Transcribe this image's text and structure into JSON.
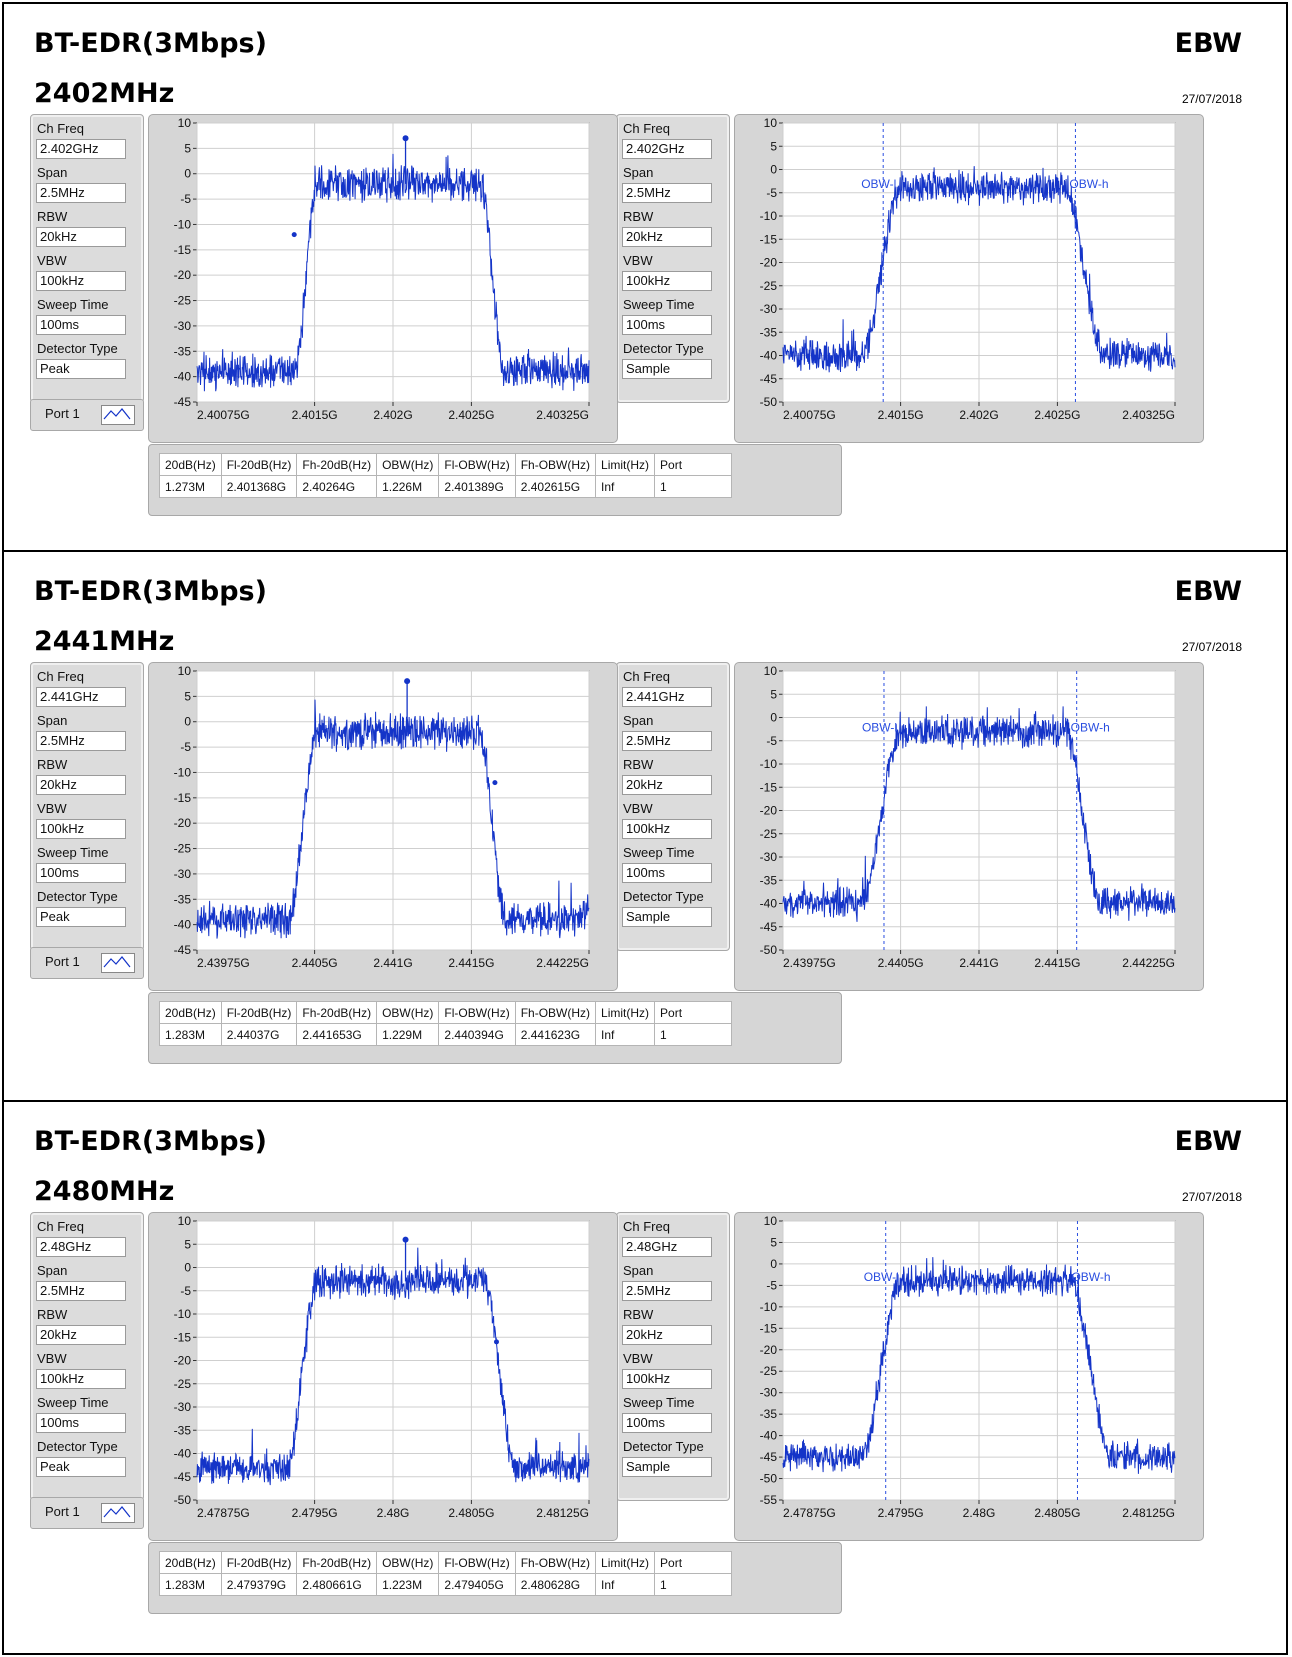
{
  "blocks": [
    {
      "title": "BT-EDR(3Mbps)",
      "freq_heading": "2402MHz",
      "ebw": "EBW",
      "date": "27/07/2018",
      "left_params": [
        [
          "Ch Freq",
          "2.402GHz"
        ],
        [
          "Span",
          "2.5MHz"
        ],
        [
          "RBW",
          "20kHz"
        ],
        [
          "VBW",
          "100kHz"
        ],
        [
          "Sweep Time",
          "100ms"
        ],
        [
          "Detector Type",
          "Peak"
        ]
      ],
      "right_params": [
        [
          "Ch Freq",
          "2.402GHz"
        ],
        [
          "Span",
          "2.5MHz"
        ],
        [
          "RBW",
          "20kHz"
        ],
        [
          "VBW",
          "100kHz"
        ],
        [
          "Sweep Time",
          "100ms"
        ],
        [
          "Detector Type",
          "Sample"
        ]
      ],
      "port_label": "Port 1",
      "table": {
        "headers": [
          "20dB(Hz)",
          "Fl-20dB(Hz)",
          "Fh-20dB(Hz)",
          "OBW(Hz)",
          "Fl-OBW(Hz)",
          "Fh-OBW(Hz)",
          "Limit(Hz)",
          "Port"
        ],
        "values": [
          "1.273M",
          "2.401368G",
          "2.40264G",
          "1.226M",
          "2.401389G",
          "2.402615G",
          "Inf",
          "1"
        ]
      }
    },
    {
      "title": "BT-EDR(3Mbps)",
      "freq_heading": "2441MHz",
      "ebw": "EBW",
      "date": "27/07/2018",
      "left_params": [
        [
          "Ch Freq",
          "2.441GHz"
        ],
        [
          "Span",
          "2.5MHz"
        ],
        [
          "RBW",
          "20kHz"
        ],
        [
          "VBW",
          "100kHz"
        ],
        [
          "Sweep Time",
          "100ms"
        ],
        [
          "Detector Type",
          "Peak"
        ]
      ],
      "right_params": [
        [
          "Ch Freq",
          "2.441GHz"
        ],
        [
          "Span",
          "2.5MHz"
        ],
        [
          "RBW",
          "20kHz"
        ],
        [
          "VBW",
          "100kHz"
        ],
        [
          "Sweep Time",
          "100ms"
        ],
        [
          "Detector Type",
          "Sample"
        ]
      ],
      "port_label": "Port 1",
      "table": {
        "headers": [
          "20dB(Hz)",
          "Fl-20dB(Hz)",
          "Fh-20dB(Hz)",
          "OBW(Hz)",
          "Fl-OBW(Hz)",
          "Fh-OBW(Hz)",
          "Limit(Hz)",
          "Port"
        ],
        "values": [
          "1.283M",
          "2.44037G",
          "2.441653G",
          "1.229M",
          "2.440394G",
          "2.441623G",
          "Inf",
          "1"
        ]
      }
    },
    {
      "title": "BT-EDR(3Mbps)",
      "freq_heading": "2480MHz",
      "ebw": "EBW",
      "date": "27/07/2018",
      "left_params": [
        [
          "Ch Freq",
          "2.48GHz"
        ],
        [
          "Span",
          "2.5MHz"
        ],
        [
          "RBW",
          "20kHz"
        ],
        [
          "VBW",
          "100kHz"
        ],
        [
          "Sweep Time",
          "100ms"
        ],
        [
          "Detector Type",
          "Peak"
        ]
      ],
      "right_params": [
        [
          "Ch Freq",
          "2.48GHz"
        ],
        [
          "Span",
          "2.5MHz"
        ],
        [
          "RBW",
          "20kHz"
        ],
        [
          "VBW",
          "100kHz"
        ],
        [
          "Sweep Time",
          "100ms"
        ],
        [
          "Detector Type",
          "Sample"
        ]
      ],
      "port_label": "Port 1",
      "table": {
        "headers": [
          "20dB(Hz)",
          "Fl-20dB(Hz)",
          "Fh-20dB(Hz)",
          "OBW(Hz)",
          "Fl-OBW(Hz)",
          "Fh-OBW(Hz)",
          "Limit(Hz)",
          "Port"
        ],
        "values": [
          "1.283M",
          "2.479379G",
          "2.480661G",
          "1.223M",
          "2.479405G",
          "2.480628G",
          "Inf",
          "1"
        ]
      }
    }
  ],
  "colors": {
    "trace": "#1434c8",
    "plot_bg": "#ffffff",
    "grid": "#cfcfcf",
    "marker_line": "#2a4ee0"
  },
  "chart_data": [
    {
      "type": "line",
      "id": "2402-peak",
      "x_ticks": [
        "2.40075G",
        "2.4015G",
        "2.402G",
        "2.4025G",
        "2.40325G"
      ],
      "x_tick_values": [
        2.40075,
        2.4015,
        2.402,
        2.4025,
        2.40325
      ],
      "xlim": [
        2.40075,
        2.40325
      ],
      "ylim": [
        -45,
        10
      ],
      "y_ticks": [
        10,
        5,
        0,
        -5,
        -10,
        -15,
        -20,
        -25,
        -30,
        -35,
        -40,
        -45
      ],
      "grid": true,
      "envelope": {
        "floor": -39,
        "plateau": -2,
        "ramp_low": [
          2.40137,
          2.40152
        ],
        "ramp_high": [
          2.40256,
          2.40271
        ]
      },
      "peak_marker": {
        "x": 2.40208,
        "y": 7
      },
      "markers": [
        {
          "x": 2.40137,
          "y": -12
        }
      ]
    },
    {
      "type": "line",
      "id": "2402-sample",
      "x_ticks": [
        "2.40075G",
        "2.4015G",
        "2.402G",
        "2.4025G",
        "2.40325G"
      ],
      "x_tick_values": [
        2.40075,
        2.4015,
        2.402,
        2.4025,
        2.40325
      ],
      "xlim": [
        2.40075,
        2.40325
      ],
      "ylim": [
        -50,
        10
      ],
      "y_ticks": [
        10,
        5,
        0,
        -5,
        -10,
        -15,
        -20,
        -25,
        -30,
        -35,
        -40,
        -45,
        -50
      ],
      "grid": true,
      "envelope": {
        "floor": -40,
        "plateau": -4,
        "ramp_low": [
          2.40125,
          2.4015
        ],
        "ramp_high": [
          2.40255,
          2.4028
        ]
      },
      "obw_lines": [
        {
          "x": 2.401389,
          "label": "OBW-l"
        },
        {
          "x": 2.402615,
          "label": "OBW-h"
        }
      ]
    },
    {
      "type": "line",
      "id": "2441-peak",
      "x_ticks": [
        "2.43975G",
        "2.4405G",
        "2.441G",
        "2.4415G",
        "2.44225G"
      ],
      "x_tick_values": [
        2.43975,
        2.4405,
        2.441,
        2.4415,
        2.44225
      ],
      "xlim": [
        2.43975,
        2.44225
      ],
      "ylim": [
        -45,
        10
      ],
      "y_ticks": [
        10,
        5,
        0,
        -5,
        -10,
        -15,
        -20,
        -25,
        -30,
        -35,
        -40,
        -45
      ],
      "grid": true,
      "envelope": {
        "floor": -39,
        "plateau": -2,
        "ramp_low": [
          2.44033,
          2.44052
        ],
        "ramp_high": [
          2.44155,
          2.44172
        ]
      },
      "peak_marker": {
        "x": 2.44109,
        "y": 8
      },
      "markers": [
        {
          "x": 2.44165,
          "y": -12
        }
      ]
    },
    {
      "type": "line",
      "id": "2441-sample",
      "x_ticks": [
        "2.43975G",
        "2.4405G",
        "2.441G",
        "2.4415G",
        "2.44225G"
      ],
      "x_tick_values": [
        2.43975,
        2.4405,
        2.441,
        2.4415,
        2.44225
      ],
      "xlim": [
        2.43975,
        2.44225
      ],
      "ylim": [
        -50,
        10
      ],
      "y_ticks": [
        10,
        5,
        0,
        -5,
        -10,
        -15,
        -20,
        -25,
        -30,
        -35,
        -40,
        -45,
        -50
      ],
      "grid": true,
      "envelope": {
        "floor": -40,
        "plateau": -3,
        "ramp_low": [
          2.44025,
          2.4405
        ],
        "ramp_high": [
          2.44155,
          2.44178
        ]
      },
      "obw_lines": [
        {
          "x": 2.440394,
          "label": "OBW-l"
        },
        {
          "x": 2.441623,
          "label": "OBW-h"
        }
      ]
    },
    {
      "type": "line",
      "id": "2480-peak",
      "x_ticks": [
        "2.47875G",
        "2.4795G",
        "2.48G",
        "2.4805G",
        "2.48125G"
      ],
      "x_tick_values": [
        2.47875,
        2.4795,
        2.48,
        2.4805,
        2.48125
      ],
      "xlim": [
        2.47875,
        2.48125
      ],
      "ylim": [
        -50,
        10
      ],
      "y_ticks": [
        10,
        5,
        0,
        -5,
        -10,
        -15,
        -20,
        -25,
        -30,
        -35,
        -40,
        -45,
        -50
      ],
      "grid": true,
      "envelope": {
        "floor": -43,
        "plateau": -3,
        "ramp_low": [
          2.47932,
          2.47952
        ],
        "ramp_high": [
          2.48058,
          2.48078
        ]
      },
      "peak_marker": {
        "x": 2.48008,
        "y": 6
      },
      "markers": [
        {
          "x": 2.48066,
          "y": -16
        }
      ]
    },
    {
      "type": "line",
      "id": "2480-sample",
      "x_ticks": [
        "2.47875G",
        "2.4795G",
        "2.48G",
        "2.4805G",
        "2.48125G"
      ],
      "x_tick_values": [
        2.47875,
        2.4795,
        2.48,
        2.4805,
        2.48125
      ],
      "xlim": [
        2.47875,
        2.48125
      ],
      "ylim": [
        -55,
        10
      ],
      "y_ticks": [
        10,
        5,
        0,
        -5,
        -10,
        -15,
        -20,
        -25,
        -30,
        -35,
        -40,
        -45,
        -50,
        -55
      ],
      "grid": true,
      "envelope": {
        "floor": -45,
        "plateau": -4,
        "ramp_low": [
          2.47925,
          2.4795
        ],
        "ramp_high": [
          2.48058,
          2.48085
        ]
      },
      "obw_lines": [
        {
          "x": 2.479405,
          "label": "OBW-l"
        },
        {
          "x": 2.480628,
          "label": "OBW-h"
        }
      ]
    }
  ]
}
